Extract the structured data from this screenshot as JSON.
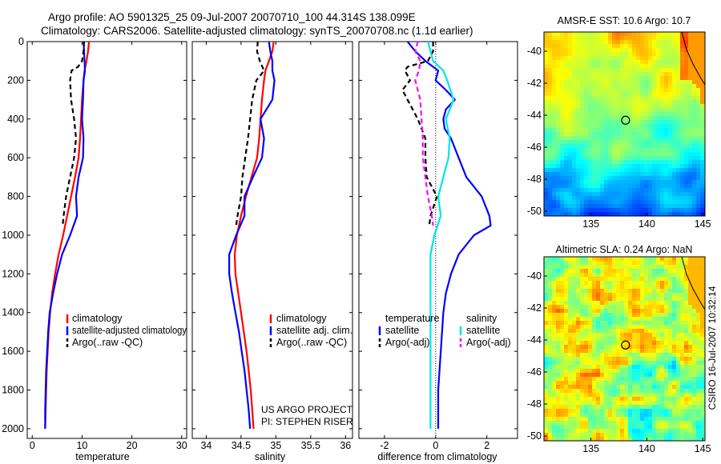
{
  "header": {
    "line1": "Argo profile: AO 5901325_25 09-Jul-2007 20070710_100 44.314S 138.099E",
    "line2": "Climatology: CARS2006. Satellite-adjusted climatology: synTS_20070708.nc (1.1d earlier)"
  },
  "footer": {
    "project": "US ARGO PROJECT",
    "pi": "PI: STEPHEN RISER",
    "stamp": "CSIRO 16-Jul-2007 10:32:14"
  },
  "colors": {
    "climatology": "#ff0000",
    "satellite": "#0000ff",
    "argo": "#000000",
    "satellite_salinity": "#00e5e5",
    "argo_salinity": "#ff00ff"
  },
  "chart_data": [
    {
      "type": "line",
      "id": "temperature",
      "xlabel": "temperature",
      "ylabel": "",
      "xlim": [
        -1,
        31
      ],
      "ylim": [
        0,
        2050
      ],
      "y_inverted": true,
      "xticks": [
        "0",
        "10",
        "20",
        "30"
      ],
      "yticks": [
        "0",
        "200",
        "400",
        "600",
        "800",
        "1000",
        "1200",
        "1400",
        "1600",
        "1800",
        "2000"
      ],
      "legend": [
        "climatology",
        "satellite-adjusted climatology",
        "Argo(..raw -QC)"
      ],
      "series": [
        {
          "name": "climatology",
          "color": "#ff0000",
          "dash": false,
          "points": [
            [
              11.4,
              0
            ],
            [
              11.2,
              50
            ],
            [
              10.9,
              100
            ],
            [
              10.5,
              150
            ],
            [
              10.3,
              200
            ],
            [
              10.0,
              300
            ],
            [
              9.8,
              400
            ],
            [
              9.6,
              500
            ],
            [
              9.3,
              600
            ],
            [
              8.6,
              700
            ],
            [
              7.8,
              800
            ],
            [
              7.0,
              900
            ],
            [
              6.2,
              1000
            ],
            [
              5.3,
              1100
            ],
            [
              4.6,
              1200
            ],
            [
              4.0,
              1300
            ],
            [
              3.6,
              1400
            ],
            [
              3.3,
              1500
            ],
            [
              3.1,
              1600
            ],
            [
              2.9,
              1700
            ],
            [
              2.8,
              1800
            ],
            [
              2.7,
              1900
            ],
            [
              2.6,
              2000
            ]
          ]
        },
        {
          "name": "satellite-adjusted climatology",
          "color": "#0000ff",
          "dash": false,
          "points": [
            [
              10.3,
              0
            ],
            [
              10.4,
              50
            ],
            [
              10.5,
              100
            ],
            [
              10.6,
              150
            ],
            [
              10.3,
              200
            ],
            [
              10.2,
              300
            ],
            [
              10.0,
              400
            ],
            [
              10.3,
              500
            ],
            [
              10.2,
              600
            ],
            [
              9.3,
              700
            ],
            [
              8.8,
              800
            ],
            [
              9.0,
              900
            ],
            [
              7.6,
              1000
            ],
            [
              6.0,
              1100
            ],
            [
              5.0,
              1200
            ],
            [
              4.2,
              1300
            ],
            [
              3.5,
              1400
            ],
            [
              3.2,
              1500
            ],
            [
              3.0,
              1600
            ],
            [
              2.8,
              1700
            ],
            [
              2.7,
              1800
            ],
            [
              2.6,
              1900
            ],
            [
              2.6,
              2000
            ]
          ]
        },
        {
          "name": "Argo(..raw -QC)",
          "color": "#000000",
          "dash": true,
          "points": [
            [
              10.4,
              0
            ],
            [
              10.3,
              50
            ],
            [
              10.0,
              100
            ],
            [
              9.2,
              130
            ],
            [
              7.9,
              150
            ],
            [
              7.6,
              200
            ],
            [
              7.8,
              300
            ],
            [
              8.4,
              400
            ],
            [
              8.8,
              500
            ],
            [
              8.4,
              600
            ],
            [
              7.6,
              700
            ],
            [
              6.8,
              800
            ],
            [
              6.3,
              900
            ],
            [
              6.1,
              950
            ]
          ]
        }
      ]
    },
    {
      "type": "line",
      "id": "salinity",
      "xlabel": "salinity",
      "ylabel": "",
      "xlim": [
        33.8,
        36.1
      ],
      "ylim": [
        0,
        2050
      ],
      "y_inverted": true,
      "xticks": [
        "34",
        "34.5",
        "35",
        "35.5",
        "36"
      ],
      "yticks": [],
      "legend": [
        "climatology",
        "satellite adj. clim.",
        "Argo(..raw -QC)"
      ],
      "series": [
        {
          "name": "climatology",
          "color": "#ff0000",
          "dash": false,
          "points": [
            [
              34.97,
              0
            ],
            [
              34.95,
              50
            ],
            [
              34.9,
              100
            ],
            [
              34.85,
              150
            ],
            [
              34.83,
              200
            ],
            [
              34.8,
              300
            ],
            [
              34.78,
              400
            ],
            [
              34.76,
              500
            ],
            [
              34.73,
              600
            ],
            [
              34.65,
              700
            ],
            [
              34.57,
              800
            ],
            [
              34.5,
              900
            ],
            [
              34.44,
              1000
            ],
            [
              34.41,
              1100
            ],
            [
              34.42,
              1200
            ],
            [
              34.46,
              1300
            ],
            [
              34.5,
              1400
            ],
            [
              34.54,
              1500
            ],
            [
              34.58,
              1600
            ],
            [
              34.61,
              1700
            ],
            [
              34.64,
              1800
            ],
            [
              34.66,
              1900
            ],
            [
              34.68,
              2000
            ]
          ]
        },
        {
          "name": "satellite adj. clim.",
          "color": "#0000ff",
          "dash": false,
          "points": [
            [
              34.9,
              0
            ],
            [
              34.92,
              50
            ],
            [
              34.95,
              100
            ],
            [
              34.95,
              150
            ],
            [
              34.98,
              200
            ],
            [
              34.95,
              300
            ],
            [
              34.78,
              400
            ],
            [
              34.83,
              500
            ],
            [
              34.8,
              600
            ],
            [
              34.67,
              700
            ],
            [
              34.55,
              800
            ],
            [
              34.55,
              900
            ],
            [
              34.43,
              1000
            ],
            [
              34.33,
              1100
            ],
            [
              34.33,
              1200
            ],
            [
              34.37,
              1300
            ],
            [
              34.42,
              1400
            ],
            [
              34.47,
              1500
            ],
            [
              34.51,
              1600
            ],
            [
              34.55,
              1700
            ],
            [
              34.58,
              1800
            ],
            [
              34.61,
              1900
            ],
            [
              34.63,
              2000
            ]
          ]
        },
        {
          "name": "Argo(..raw -QC)",
          "color": "#000000",
          "dash": true,
          "points": [
            [
              34.74,
              0
            ],
            [
              34.73,
              50
            ],
            [
              34.77,
              100
            ],
            [
              34.83,
              150
            ],
            [
              34.72,
              200
            ],
            [
              34.66,
              300
            ],
            [
              34.63,
              400
            ],
            [
              34.6,
              500
            ],
            [
              34.56,
              600
            ],
            [
              34.52,
              700
            ],
            [
              34.5,
              800
            ],
            [
              34.45,
              900
            ],
            [
              34.43,
              950
            ]
          ]
        }
      ]
    },
    {
      "type": "line",
      "id": "difference",
      "xlabel": "difference from climatology",
      "ylabel": "",
      "xlim": [
        -3,
        3.2
      ],
      "ylim": [
        0,
        2050
      ],
      "y_inverted": true,
      "xticks": [
        "-2",
        "0",
        "2"
      ],
      "yticks": [],
      "legend_headings": [
        "temperature",
        "salinity"
      ],
      "legend": [
        "satellite",
        "Argo(-adj)",
        "satellite",
        "Argo(-adj)"
      ],
      "series": [
        {
          "name": "satellite",
          "group": "temperature",
          "color": "#0000ff",
          "dash": false,
          "points": [
            [
              -1.1,
              0
            ],
            [
              -0.8,
              50
            ],
            [
              -0.4,
              100
            ],
            [
              0.1,
              150
            ],
            [
              0.0,
              200
            ],
            [
              0.4,
              250
            ],
            [
              0.75,
              300
            ],
            [
              0.4,
              350
            ],
            [
              0.3,
              400
            ],
            [
              0.35,
              450
            ],
            [
              0.6,
              500
            ],
            [
              0.9,
              600
            ],
            [
              1.2,
              700
            ],
            [
              1.8,
              800
            ],
            [
              2.1,
              900
            ],
            [
              2.15,
              950
            ],
            [
              1.5,
              1000
            ],
            [
              0.9,
              1100
            ],
            [
              0.6,
              1200
            ],
            [
              0.4,
              1300
            ],
            [
              0.3,
              1400
            ],
            [
              0.25,
              1500
            ],
            [
              0.2,
              1600
            ],
            [
              0.15,
              1700
            ],
            [
              0.1,
              1800
            ],
            [
              0.1,
              1900
            ],
            [
              0.1,
              2000
            ]
          ]
        },
        {
          "name": "Argo(-adj)",
          "group": "temperature",
          "color": "#000000",
          "dash": true,
          "points": [
            [
              -0.1,
              0
            ],
            [
              -0.1,
              50
            ],
            [
              -0.3,
              100
            ],
            [
              -1.1,
              130
            ],
            [
              -1.2,
              150
            ],
            [
              -1.0,
              200
            ],
            [
              -1.3,
              250
            ],
            [
              -1.1,
              300
            ],
            [
              -0.7,
              400
            ],
            [
              -0.4,
              500
            ],
            [
              -0.4,
              600
            ],
            [
              -0.35,
              700
            ],
            [
              0.05,
              800
            ],
            [
              -0.2,
              900
            ],
            [
              -0.25,
              950
            ]
          ]
        },
        {
          "name": "satellite",
          "group": "salinity",
          "color": "#00e5e5",
          "dash": false,
          "points": [
            [
              -0.3,
              0
            ],
            [
              -0.2,
              50
            ],
            [
              -0.1,
              100
            ],
            [
              0.3,
              150
            ],
            [
              0.45,
              200
            ],
            [
              0.7,
              300
            ],
            [
              0.4,
              400
            ],
            [
              0.55,
              500
            ],
            [
              0.5,
              600
            ],
            [
              0.3,
              700
            ],
            [
              0.1,
              800
            ],
            [
              0.2,
              900
            ],
            [
              -0.05,
              1000
            ],
            [
              -0.2,
              1100
            ],
            [
              -0.2,
              1200
            ],
            [
              -0.2,
              1300
            ],
            [
              -0.2,
              1400
            ],
            [
              -0.2,
              1500
            ],
            [
              -0.2,
              1600
            ],
            [
              -0.2,
              1700
            ],
            [
              -0.2,
              1800
            ],
            [
              -0.2,
              1900
            ],
            [
              -0.2,
              2000
            ]
          ]
        },
        {
          "name": "Argo(-adj)",
          "group": "salinity",
          "color": "#ff00ff",
          "dash": true,
          "points": [
            [
              -0.7,
              0
            ],
            [
              -0.8,
              50
            ],
            [
              -0.6,
              100
            ],
            [
              -0.65,
              150
            ],
            [
              -0.8,
              200
            ],
            [
              -0.6,
              300
            ],
            [
              -0.55,
              400
            ],
            [
              -0.5,
              500
            ],
            [
              -0.5,
              600
            ],
            [
              -0.4,
              700
            ],
            [
              -0.3,
              800
            ],
            [
              -0.15,
              900
            ],
            [
              -0.1,
              950
            ]
          ]
        }
      ]
    },
    {
      "type": "heatmap",
      "id": "sst",
      "title": "AMSR-E SST: 10.6 Argo: 10.7",
      "xlim": [
        130.8,
        145.2
      ],
      "ylim": [
        -50.3,
        -38.8
      ],
      "xticks": [
        "135",
        "140",
        "145"
      ],
      "yticks": [
        "-40",
        "-42",
        "-44",
        "-46",
        "-48",
        "-50"
      ],
      "marker": [
        138.099,
        -44.314
      ]
    },
    {
      "type": "heatmap",
      "id": "sla",
      "title": "Altimetric SLA: 0.24 Argo: NaN",
      "xlim": [
        130.8,
        145.2
      ],
      "ylim": [
        -50.3,
        -38.8
      ],
      "xticks": [
        "135",
        "140",
        "145"
      ],
      "yticks": [
        "-40",
        "-42",
        "-44",
        "-46",
        "-48",
        "-50"
      ],
      "marker": [
        138.099,
        -44.314
      ]
    }
  ]
}
